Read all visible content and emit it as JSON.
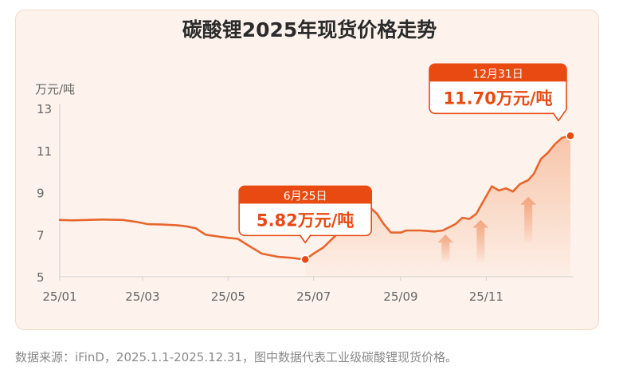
{
  "page": {
    "title": "碳酸锂2025年现货价格走势",
    "unit": "万元/吨",
    "footnote": "数据来源：iFinD，2025.1.1-2025.12.31，图中数据代表工业级碳酸锂现货价格。"
  },
  "colors": {
    "line": "#e8662d",
    "accent": "#e84a12",
    "area": "#f7c2a6",
    "callout_text": "#e84a12"
  },
  "chart_data": {
    "type": "line",
    "title": "碳酸锂2025年现货价格走势",
    "ylabel": "万元/吨",
    "xlabel": "",
    "ylim": [
      5,
      13
    ],
    "yticks": [
      5,
      7,
      9,
      11,
      13
    ],
    "xlim": [
      "2025-01-01",
      "2025-12-31"
    ],
    "xticks": [
      {
        "label": "25/01",
        "date": "2025-01-01"
      },
      {
        "label": "25/03",
        "date": "2025-03-01"
      },
      {
        "label": "25/05",
        "date": "2025-05-01"
      },
      {
        "label": "25/07",
        "date": "2025-07-01"
      },
      {
        "label": "25/09",
        "date": "2025-09-01"
      },
      {
        "label": "25/11",
        "date": "2025-11-01"
      }
    ],
    "grid": false,
    "series": [
      {
        "points": [
          [
            "2025-01-01",
            7.7
          ],
          [
            "2025-01-10",
            7.68
          ],
          [
            "2025-01-20",
            7.7
          ],
          [
            "2025-02-01",
            7.72
          ],
          [
            "2025-02-15",
            7.7
          ],
          [
            "2025-02-25",
            7.6
          ],
          [
            "2025-03-05",
            7.5
          ],
          [
            "2025-03-15",
            7.48
          ],
          [
            "2025-03-25",
            7.45
          ],
          [
            "2025-04-01",
            7.4
          ],
          [
            "2025-04-08",
            7.3
          ],
          [
            "2025-04-15",
            7.0
          ],
          [
            "2025-04-25",
            6.9
          ],
          [
            "2025-05-01",
            6.85
          ],
          [
            "2025-05-08",
            6.8
          ],
          [
            "2025-05-15",
            6.5
          ],
          [
            "2025-05-25",
            6.1
          ],
          [
            "2025-06-05",
            5.95
          ],
          [
            "2025-06-15",
            5.9
          ],
          [
            "2025-06-25",
            5.82
          ],
          [
            "2025-07-01",
            6.1
          ],
          [
            "2025-07-08",
            6.4
          ],
          [
            "2025-07-15",
            6.85
          ],
          [
            "2025-07-20",
            7.2
          ],
          [
            "2025-07-25",
            7.0
          ],
          [
            "2025-07-31",
            7.3
          ],
          [
            "2025-08-05",
            8.1
          ],
          [
            "2025-08-10",
            8.3
          ],
          [
            "2025-08-15",
            8.0
          ],
          [
            "2025-08-20",
            7.5
          ],
          [
            "2025-08-25",
            7.1
          ],
          [
            "2025-09-01",
            7.1
          ],
          [
            "2025-09-05",
            7.2
          ],
          [
            "2025-09-15",
            7.2
          ],
          [
            "2025-09-25",
            7.15
          ],
          [
            "2025-10-01",
            7.2
          ],
          [
            "2025-10-10",
            7.5
          ],
          [
            "2025-10-15",
            7.8
          ],
          [
            "2025-10-20",
            7.75
          ],
          [
            "2025-10-25",
            8.0
          ],
          [
            "2025-10-30",
            8.6
          ],
          [
            "2025-11-05",
            9.3
          ],
          [
            "2025-11-10",
            9.1
          ],
          [
            "2025-11-15",
            9.2
          ],
          [
            "2025-11-20",
            9.05
          ],
          [
            "2025-11-25",
            9.4
          ],
          [
            "2025-12-01",
            9.6
          ],
          [
            "2025-12-05",
            9.9
          ],
          [
            "2025-12-10",
            10.6
          ],
          [
            "2025-12-15",
            10.9
          ],
          [
            "2025-12-20",
            11.3
          ],
          [
            "2025-12-25",
            11.6
          ],
          [
            "2025-12-31",
            11.7
          ]
        ]
      }
    ],
    "callouts": [
      {
        "date_label": "6月25日",
        "value_label": "5.82万元/吨",
        "x": "2025-06-25",
        "y": 5.82
      },
      {
        "date_label": "12月31日",
        "value_label": "11.70万元/吨",
        "x": "2025-12-31",
        "y": 11.7
      }
    ],
    "shaded_region": {
      "from": "2025-06-25",
      "to": "2025-12-31"
    },
    "arrows": [
      {
        "x": "2025-10-03",
        "y_from": 5.7,
        "y_to": 7.0
      },
      {
        "x": "2025-10-28",
        "y_from": 5.7,
        "y_to": 7.7
      },
      {
        "x": "2025-12-01",
        "y_from": 6.6,
        "y_to": 8.8
      }
    ]
  }
}
